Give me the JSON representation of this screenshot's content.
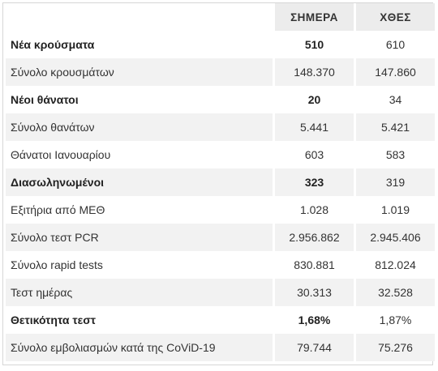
{
  "header": {
    "label_col": "",
    "today": "ΣΗΜΕΡΑ",
    "yesterday": "ΧΘΕΣ"
  },
  "rows": [
    {
      "label": "Νέα κρούσματα",
      "today": "510",
      "yesterday": "610",
      "bold": true
    },
    {
      "label": "Σύνολο κρουσμάτων",
      "today": "148.370",
      "yesterday": "147.860",
      "bold": false
    },
    {
      "label": "Νέοι θάνατοι",
      "today": "20",
      "yesterday": "34",
      "bold": true
    },
    {
      "label": "Σύνολο θανάτων",
      "today": "5.441",
      "yesterday": "5.421",
      "bold": false
    },
    {
      "label": "Θάνατοι Ιανουαρίου",
      "today": "603",
      "yesterday": "583",
      "bold": false
    },
    {
      "label": "Διασωληνωμένοι",
      "today": "323",
      "yesterday": "319",
      "bold": true
    },
    {
      "label": "Εξιτήρια από ΜΕΘ",
      "today": "1.028",
      "yesterday": "1.019",
      "bold": false
    },
    {
      "label": "Σύνολο τεστ PCR",
      "today": "2.956.862",
      "yesterday": "2.945.406",
      "bold": false
    },
    {
      "label": "Σύνολο rapid tests",
      "today": "830.881",
      "yesterday": "812.024",
      "bold": false
    },
    {
      "label": "Τεστ ημέρας",
      "today": "30.313",
      "yesterday": "32.528",
      "bold": false
    },
    {
      "label": "Θετικότητα τεστ",
      "today": "1,68%",
      "yesterday": "1,87%",
      "bold": true
    },
    {
      "label": "Σύνολο εμβολιασμών κατά της CoViD-19",
      "today": "79.744",
      "yesterday": "75.276",
      "bold": false
    }
  ]
}
